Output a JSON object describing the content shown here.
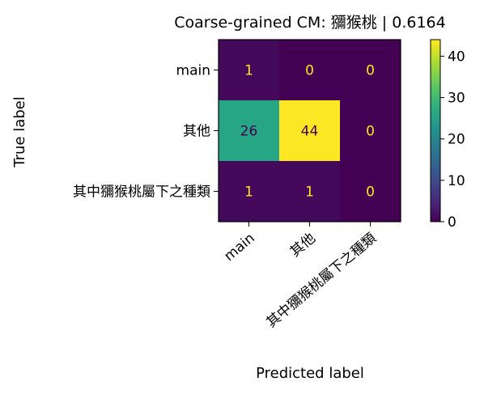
{
  "chart_data": {
    "type": "heatmap",
    "title": "Coarse-grained CM: 獼猴桃 | 0.6164",
    "xlabel": "Predicted label",
    "ylabel": "True label",
    "x_categories": [
      "main",
      "其他",
      "其中獼猴桃屬下之種類"
    ],
    "y_categories": [
      "main",
      "其他",
      "其中獼猴桃屬下之種類"
    ],
    "values": [
      [
        1,
        0,
        0
      ],
      [
        26,
        44,
        0
      ],
      [
        1,
        1,
        0
      ]
    ],
    "colorbar": {
      "min": 0,
      "max": 44,
      "ticks": [
        0,
        10,
        20,
        30,
        40
      ],
      "colormap": "viridis"
    },
    "text_colors": {
      "on_dark": "#fde725",
      "on_light": "#440154"
    }
  }
}
